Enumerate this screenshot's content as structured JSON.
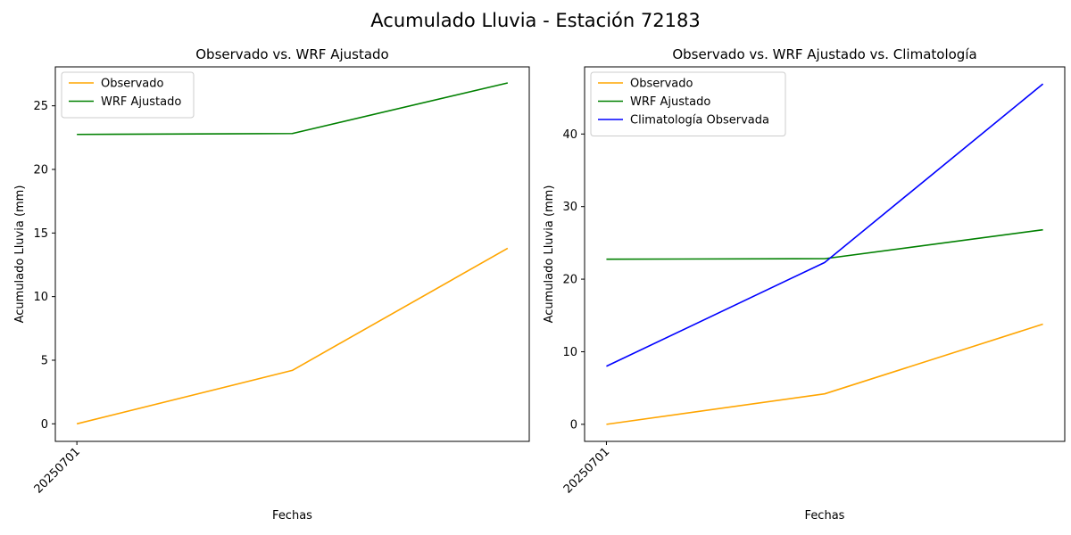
{
  "figure": {
    "suptitle": "Acumulado Lluvia - Estación 72183"
  },
  "colors": {
    "observado": "#ffa500",
    "wrf": "#008000",
    "climatologia": "#0000ff"
  },
  "chart_data": [
    {
      "type": "line",
      "title": "Observado vs. WRF Ajustado",
      "xlabel": "Fechas",
      "ylabel": "Acumulado Lluvia (mm)",
      "x": [
        0,
        1,
        2
      ],
      "xticks": [
        {
          "x": 0,
          "label": "20250701"
        }
      ],
      "ylim": [
        -1.38,
        28.06
      ],
      "yticks": [
        0,
        5,
        10,
        15,
        20,
        25
      ],
      "grid": false,
      "legend_position": "upper-left",
      "series": [
        {
          "name": "Observado",
          "color": "#ffa500",
          "values": [
            0,
            4.2,
            13.8
          ]
        },
        {
          "name": "WRF Ajustado",
          "color": "#008000",
          "values": [
            22.75,
            22.82,
            26.8
          ]
        }
      ]
    },
    {
      "type": "line",
      "title": "Observado vs. WRF Ajustado vs. Climatología",
      "xlabel": "Fechas",
      "ylabel": "Acumulado Lluvia (mm)",
      "x": [
        0,
        1,
        2
      ],
      "xticks": [
        {
          "x": 0,
          "label": "20250701"
        }
      ],
      "ylim": [
        -2.35,
        49.25
      ],
      "yticks": [
        0,
        10,
        20,
        30,
        40
      ],
      "grid": false,
      "legend_position": "upper-left",
      "series": [
        {
          "name": "Observado",
          "color": "#ffa500",
          "values": [
            0,
            4.2,
            13.8
          ]
        },
        {
          "name": "WRF Ajustado",
          "color": "#008000",
          "values": [
            22.75,
            22.82,
            26.8
          ]
        },
        {
          "name": "Climatología Observada",
          "color": "#0000ff",
          "values": [
            8.0,
            22.3,
            46.9
          ]
        }
      ]
    }
  ]
}
